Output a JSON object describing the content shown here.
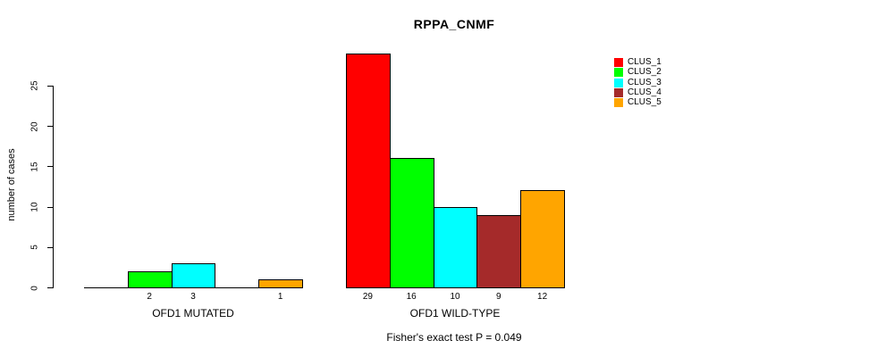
{
  "title": "RPPA_CNMF",
  "y_axis_label": "number of cases",
  "footer": "Fisher's exact test P = 0.049",
  "legend": {
    "position": "top-right",
    "items": [
      {
        "label": "CLUS_1",
        "color": "#FF0000"
      },
      {
        "label": "CLUS_2",
        "color": "#00FF00"
      },
      {
        "label": "CLUS_3",
        "color": "#00FFFF"
      },
      {
        "label": "CLUS_4",
        "color": "#A52A2A"
      },
      {
        "label": "CLUS_5",
        "color": "#FFA500"
      }
    ]
  },
  "chart_data": {
    "type": "bar",
    "title": "RPPA_CNMF",
    "xlabel": "",
    "ylabel": "number of cases",
    "ylim": [
      0,
      29
    ],
    "yticks": [
      0,
      5,
      10,
      15,
      20,
      25
    ],
    "grid": false,
    "legend_position": "top-right",
    "series_names": [
      "CLUS_1",
      "CLUS_2",
      "CLUS_3",
      "CLUS_4",
      "CLUS_5"
    ],
    "series_colors": [
      "#FF0000",
      "#00FF00",
      "#00FFFF",
      "#A52A2A",
      "#FFA500"
    ],
    "groups": [
      {
        "label": "OFD1 MUTATED",
        "values": [
          0,
          2,
          3,
          0,
          1
        ]
      },
      {
        "label": "OFD1 WILD-TYPE",
        "values": [
          29,
          16,
          10,
          9,
          12
        ]
      }
    ],
    "value_labels_shown": "nonzero bars only",
    "annotation": "Fisher's exact test P = 0.049"
  }
}
